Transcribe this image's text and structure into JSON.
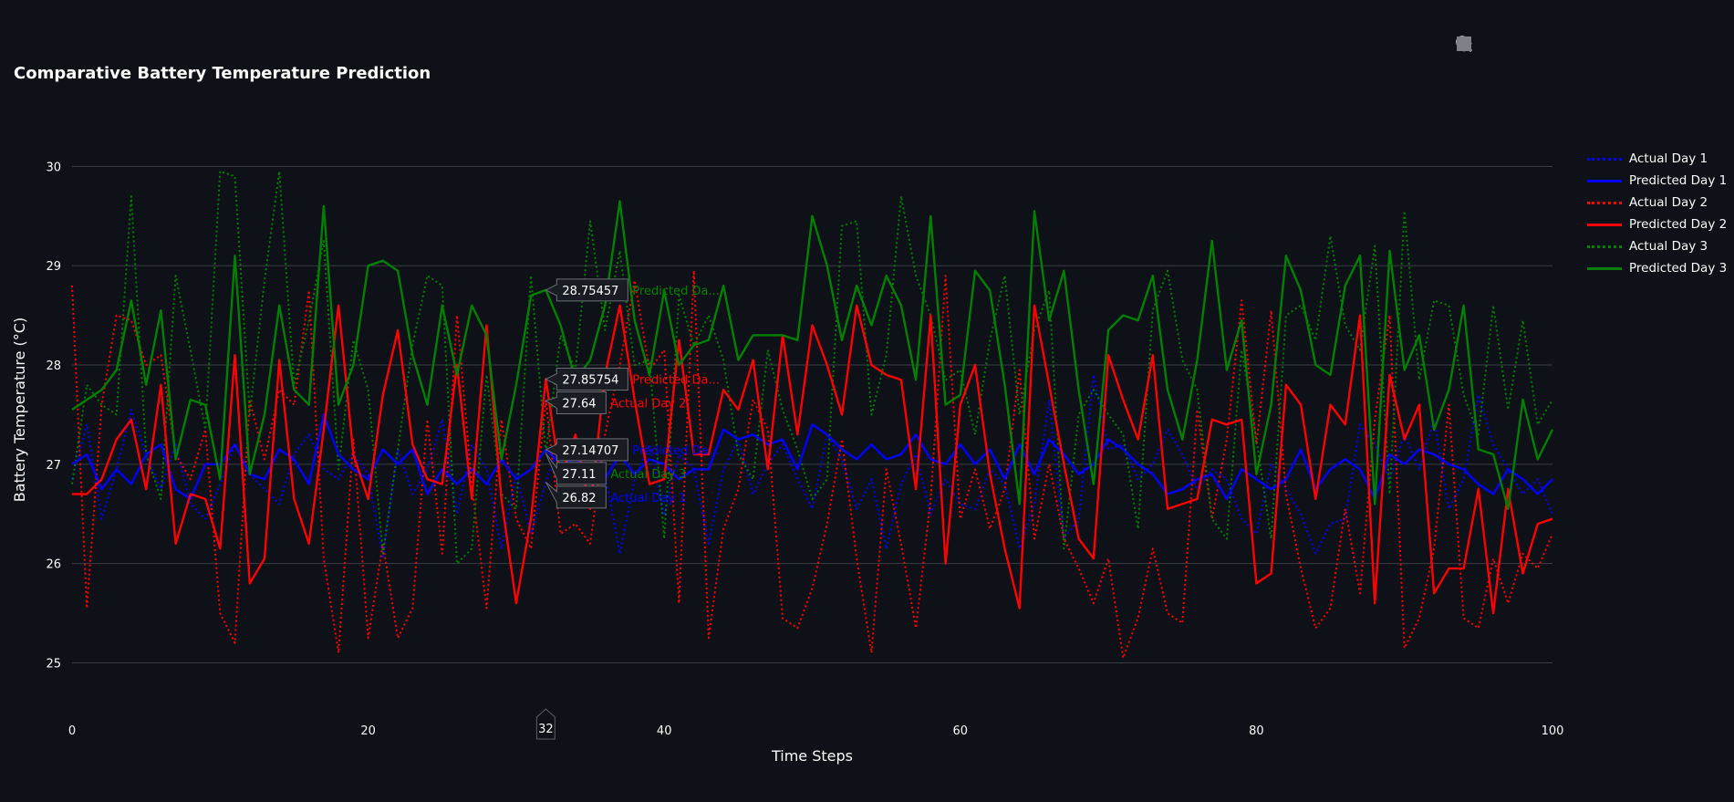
{
  "chart_data": {
    "type": "line",
    "title": "Comparative Battery Temperature Prediction",
    "xlabel": "Time Steps",
    "ylabel": "Battery Temperature (°C)",
    "xlim": [
      0,
      100
    ],
    "ylim": [
      24.6,
      30.5
    ],
    "xticks": [
      0,
      20,
      40,
      60,
      80,
      100
    ],
    "yticks": [
      25,
      26,
      27,
      28,
      29,
      30
    ],
    "grid": true,
    "legend_position": "top-right",
    "hover_x": 32,
    "series": [
      {
        "name": "Actual Day 1",
        "color": "#0000ff",
        "dash": "dot",
        "values": [
          26.85,
          27.4,
          26.45,
          26.95,
          27.55,
          27.1,
          26.75,
          27.2,
          26.6,
          26.45,
          26.8,
          27.2,
          26.9,
          26.75,
          26.6,
          27.1,
          27.3,
          26.95,
          26.85,
          27.1,
          26.9,
          26.05,
          27.15,
          26.7,
          26.95,
          27.45,
          26.5,
          27.2,
          26.95,
          26.15,
          26.9,
          26.3,
          26.82,
          27.25,
          26.95,
          27.2,
          26.9,
          26.1,
          26.85,
          27.2,
          26.5,
          27.1,
          26.95,
          26.2,
          26.95,
          27.25,
          26.7,
          27.0,
          27.2,
          26.85,
          26.55,
          27.3,
          27.05,
          26.55,
          26.85,
          26.15,
          26.8,
          27.1,
          26.5,
          26.85,
          26.6,
          26.55,
          26.95,
          26.8,
          26.15,
          26.6,
          27.65,
          26.25,
          26.45,
          27.9,
          27.15,
          27.2,
          26.85,
          27.0,
          27.35,
          27.1,
          26.75,
          26.95,
          26.85,
          26.45,
          26.3,
          27.0,
          26.75,
          26.5,
          26.1,
          26.4,
          26.45,
          27.4,
          27.2,
          26.85,
          27.3,
          26.95,
          27.45,
          26.55,
          26.85,
          27.7,
          27.2,
          26.95,
          26.7,
          26.85,
          26.5
        ]
      },
      {
        "name": "Predicted Day 1",
        "color": "#0000ff",
        "dash": "solid",
        "values": [
          27.0,
          27.1,
          26.75,
          26.95,
          26.8,
          27.1,
          27.2,
          26.75,
          26.65,
          27.0,
          27.0,
          27.2,
          26.9,
          26.85,
          27.15,
          27.05,
          26.8,
          27.5,
          27.1,
          26.95,
          26.85,
          27.15,
          27.0,
          27.15,
          26.7,
          26.95,
          26.8,
          26.95,
          26.8,
          27.05,
          26.85,
          26.95,
          27.14707,
          27.0,
          27.05,
          26.95,
          26.85,
          27.1,
          26.9,
          27.05,
          27.0,
          26.85,
          26.95,
          26.95,
          27.35,
          27.25,
          27.3,
          27.2,
          27.25,
          26.95,
          27.4,
          27.3,
          27.15,
          27.05,
          27.2,
          27.05,
          27.1,
          27.3,
          27.05,
          27.0,
          27.2,
          27.0,
          27.15,
          26.85,
          27.2,
          26.9,
          27.25,
          27.1,
          26.9,
          27.0,
          27.25,
          27.15,
          27.0,
          26.9,
          26.7,
          26.75,
          26.85,
          26.9,
          26.65,
          26.95,
          26.85,
          26.75,
          26.85,
          27.15,
          26.75,
          26.95,
          27.05,
          26.95,
          26.65,
          27.1,
          27.0,
          27.15,
          27.1,
          27.0,
          26.95,
          26.8,
          26.7,
          26.95,
          26.85,
          26.7,
          26.85
        ]
      },
      {
        "name": "Actual Day 2",
        "color": "#ff0000",
        "dash": "dot",
        "values": [
          28.8,
          25.55,
          27.6,
          28.5,
          28.45,
          28.0,
          28.1,
          27.1,
          26.85,
          27.35,
          25.5,
          25.2,
          27.65,
          27.05,
          27.75,
          27.6,
          28.75,
          26.05,
          25.1,
          27.25,
          25.25,
          26.2,
          25.25,
          25.55,
          27.45,
          26.1,
          28.5,
          26.8,
          25.55,
          27.45,
          26.45,
          26.15,
          27.64,
          26.3,
          26.4,
          26.2,
          27.3,
          28.0,
          28.85,
          27.95,
          28.15,
          25.6,
          28.95,
          25.25,
          26.35,
          26.75,
          27.65,
          27.35,
          25.45,
          25.35,
          25.75,
          26.4,
          27.25,
          26.05,
          25.1,
          26.95,
          26.2,
          25.35,
          26.65,
          28.9,
          26.45,
          26.95,
          26.35,
          26.75,
          27.95,
          26.25,
          27.0,
          26.25,
          25.95,
          25.6,
          26.05,
          25.05,
          25.45,
          26.15,
          25.5,
          25.4,
          27.55,
          26.45,
          27.25,
          28.65,
          27.2,
          28.55,
          26.7,
          25.95,
          25.35,
          25.55,
          26.55,
          25.7,
          27.45,
          28.5,
          25.15,
          25.45,
          26.15,
          27.6,
          25.45,
          25.35,
          26.05,
          25.6,
          26.1,
          25.95,
          26.3
        ]
      },
      {
        "name": "Predicted Day 2",
        "color": "#ff0000",
        "dash": "solid",
        "values": [
          26.7,
          26.7,
          26.85,
          27.25,
          27.45,
          26.75,
          27.8,
          26.2,
          26.7,
          26.65,
          26.15,
          28.1,
          25.8,
          26.05,
          28.05,
          26.65,
          26.2,
          27.35,
          28.6,
          27.1,
          26.65,
          27.7,
          28.35,
          27.2,
          26.85,
          26.8,
          28.0,
          26.65,
          28.4,
          26.65,
          25.6,
          26.45,
          27.85754,
          26.85,
          27.3,
          26.55,
          27.9,
          28.6,
          27.65,
          26.8,
          26.85,
          28.25,
          27.1,
          27.1,
          27.75,
          27.55,
          28.05,
          26.95,
          28.3,
          27.3,
          28.4,
          28.0,
          27.5,
          28.6,
          28.0,
          27.9,
          27.85,
          26.75,
          28.5,
          26.0,
          27.6,
          28.0,
          26.9,
          26.15,
          25.55,
          28.6,
          27.8,
          27.0,
          26.25,
          26.05,
          28.1,
          27.65,
          27.25,
          28.1,
          26.55,
          26.6,
          26.65,
          27.45,
          27.4,
          27.45,
          25.8,
          25.9,
          27.8,
          27.6,
          26.65,
          27.6,
          27.4,
          28.5,
          25.6,
          27.9,
          27.25,
          27.6,
          25.7,
          25.95,
          25.95,
          26.75,
          25.5,
          26.75,
          25.9,
          26.4,
          26.45
        ]
      },
      {
        "name": "Actual Day 3",
        "color": "#008000",
        "dash": "dot",
        "values": [
          26.8,
          27.8,
          27.6,
          27.5,
          29.7,
          27.1,
          26.65,
          28.9,
          28.15,
          27.35,
          29.95,
          29.9,
          27.5,
          28.85,
          29.95,
          27.8,
          28.45,
          29.25,
          26.95,
          28.25,
          27.75,
          26.1,
          27.15,
          28.2,
          28.9,
          28.8,
          26.0,
          26.15,
          27.9,
          26.7,
          26.55,
          28.9,
          27.11,
          28.3,
          27.95,
          29.45,
          28.35,
          29.15,
          28.0,
          28.05,
          26.25,
          28.7,
          28.2,
          28.5,
          28.05,
          27.1,
          26.85,
          28.15,
          27.55,
          27.15,
          26.65,
          26.85,
          29.4,
          29.45,
          27.5,
          28.1,
          29.7,
          28.9,
          28.5,
          27.85,
          27.95,
          27.3,
          28.25,
          28.9,
          27.5,
          28.35,
          28.75,
          26.15,
          27.5,
          27.75,
          27.5,
          27.3,
          26.35,
          28.55,
          28.95,
          28.05,
          27.75,
          26.45,
          26.25,
          28.15,
          27.25,
          26.25,
          28.5,
          28.6,
          28.25,
          29.3,
          28.4,
          28.15,
          29.2,
          26.7,
          29.55,
          27.85,
          28.65,
          28.6,
          27.7,
          27.3,
          28.6,
          27.55,
          28.45,
          27.4,
          27.65
        ]
      },
      {
        "name": "Predicted Day 3",
        "color": "#008000",
        "dash": "solid",
        "values": [
          27.55,
          27.65,
          27.75,
          27.95,
          28.65,
          27.8,
          28.55,
          27.05,
          27.65,
          27.6,
          26.85,
          29.1,
          26.9,
          27.5,
          28.6,
          27.75,
          27.6,
          29.6,
          27.6,
          28.0,
          29.0,
          29.05,
          28.95,
          28.1,
          27.6,
          28.6,
          27.9,
          28.6,
          28.3,
          27.05,
          27.8,
          28.7,
          28.75457,
          28.4,
          27.85,
          28.05,
          28.6,
          29.65,
          28.45,
          27.9,
          28.75,
          28.0,
          28.2,
          28.25,
          28.8,
          28.05,
          28.3,
          28.3,
          28.3,
          28.25,
          29.5,
          29.0,
          28.25,
          28.8,
          28.4,
          28.9,
          28.6,
          27.85,
          29.5,
          27.6,
          27.7,
          28.95,
          28.75,
          27.8,
          26.6,
          29.55,
          28.45,
          28.95,
          27.75,
          26.8,
          28.35,
          28.5,
          28.45,
          28.9,
          27.75,
          27.25,
          28.05,
          29.25,
          27.95,
          28.45,
          26.9,
          27.6,
          29.1,
          28.75,
          28.0,
          27.9,
          28.8,
          29.1,
          26.6,
          29.15,
          27.95,
          28.3,
          27.35,
          27.75,
          28.6,
          27.15,
          27.1,
          26.55,
          27.65,
          27.05,
          27.35
        ]
      }
    ]
  },
  "modebar": {
    "buttons": [
      "camera-icon",
      "zoom-icon",
      "pan-icon",
      "zoom-in-icon",
      "zoom-out-icon",
      "autoscale-icon",
      "reset-axes-icon",
      "fullscreen-icon"
    ]
  }
}
